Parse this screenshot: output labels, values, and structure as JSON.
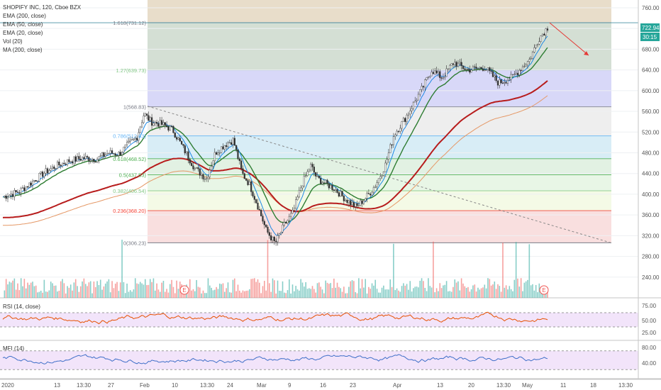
{
  "header": {
    "symbol_line": "SHOPIFY INC, 120, Cboe BZX",
    "indicators": [
      "EMA (200, close)",
      "EMA (50, close)",
      "EMA (20, close)",
      "Vol (20)",
      "MA (200, close)"
    ]
  },
  "price_axis": {
    "min": 200,
    "max": 775,
    "ticks": [
      240,
      280,
      320,
      360,
      400,
      440,
      480,
      520,
      560,
      600,
      640,
      680,
      720,
      760
    ],
    "last_price": "722.94",
    "countdown": "30:15"
  },
  "fib_levels": [
    {
      "ratio": 1.618,
      "label": "1.618(731.12)",
      "value": 731.12,
      "color": "#787b86",
      "fill": "#cbb48a"
    },
    {
      "ratio": 1.27,
      "label": "1.27(639.73)",
      "value": 639.73,
      "color": "#81c784",
      "fill": "#9fb8a0"
    },
    {
      "ratio": 1,
      "label": "1(568.83)",
      "value": 568.83,
      "color": "#787b86",
      "fill": "#a9a9ef"
    },
    {
      "ratio": 0.786,
      "label": "0.786(512.63)",
      "value": 512.63,
      "color": "#64b5f6",
      "fill": "#d9d9d9"
    },
    {
      "ratio": 0.618,
      "label": "0.618(468.52)",
      "value": 468.52,
      "color": "#4caf50",
      "fill": "#a8d8ec"
    },
    {
      "ratio": 0.5,
      "label": "0.5(437.53)",
      "value": 437.53,
      "color": "#4caf50",
      "fill": "#bfe0c0"
    },
    {
      "ratio": 0.382,
      "label": "0.382(406.54)",
      "value": 406.54,
      "color": "#81c784",
      "fill": "#cdeac8"
    },
    {
      "ratio": 0.236,
      "label": "0.236(368.20)",
      "value": 368.2,
      "color": "#f44336",
      "fill": "#e7f3c8"
    },
    {
      "ratio": 0,
      "label": "0(306.23)",
      "value": 306.23,
      "color": "#787b86",
      "fill": "#f2b8b8"
    }
  ],
  "rsi": {
    "label": "RSI (14, close)",
    "ticks": [
      "75.00",
      "50.00",
      "25.00"
    ],
    "upper": 70,
    "lower": 30
  },
  "mfi": {
    "label": "MFI (14)",
    "ticks": [
      "80.00",
      "40.00"
    ],
    "upper": 80,
    "lower": 20
  },
  "time_axis": [
    "2020",
    "13",
    "13:30",
    "27",
    "Feb",
    "10",
    "13:30",
    "24",
    "Mar",
    "9",
    "16",
    "23",
    "Apr",
    "13",
    "20",
    "13:30",
    "May",
    "11",
    "18",
    "13:30"
  ],
  "earnings_marker": "E",
  "chart_data": {
    "type": "candlestick",
    "title": "SHOPIFY INC, 120, Cboe BZX",
    "ylim": [
      200,
      775
    ],
    "grid": true,
    "series": [
      {
        "name": "EMA (200, close)",
        "color": "#b71c1c"
      },
      {
        "name": "EMA (50, close)",
        "color": "#2e7d32"
      },
      {
        "name": "EMA (20, close)",
        "color": "#1e88e5"
      },
      {
        "name": "MA (200, close)",
        "color": "#e59866"
      }
    ],
    "annotations": [
      "1.618(731.12)",
      "1.27(639.73)",
      "1(568.83)",
      "0.786(512.63)",
      "0.618(468.52)",
      "0.5(437.53)",
      "0.382(406.54)",
      "0.236(368.20)",
      "0(306.23)"
    ]
  }
}
